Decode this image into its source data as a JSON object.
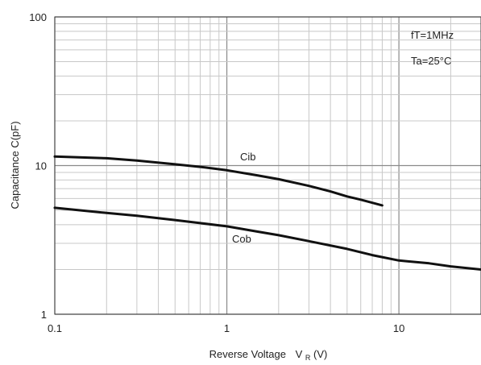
{
  "chart_data": {
    "type": "line",
    "xscale": "log",
    "yscale": "log",
    "xlim": [
      0.1,
      30
    ],
    "ylim": [
      1,
      100
    ],
    "x_ticks": [
      0.1,
      1,
      10
    ],
    "x_tick_labels": [
      "0.1",
      "1",
      "10"
    ],
    "y_ticks": [
      1,
      10,
      100
    ],
    "y_tick_labels": [
      "1",
      "10",
      "100"
    ],
    "xlabel": "Reverse Voltage",
    "xlabel_symbol": "V",
    "xlabel_sub": "R",
    "xlabel_unit": "(V)",
    "ylabel": "Capacitance  C(pF)",
    "grid": true,
    "annotations": [
      "fT=1MHz",
      "Ta=25°C"
    ],
    "series": [
      {
        "name": "Cib",
        "x": [
          0.1,
          0.2,
          0.3,
          0.5,
          0.7,
          1,
          1.5,
          2,
          3,
          4,
          5,
          6,
          8
        ],
        "y": [
          11.5,
          11.2,
          10.8,
          10.2,
          9.8,
          9.3,
          8.6,
          8.1,
          7.3,
          6.7,
          6.2,
          5.9,
          5.4
        ]
      },
      {
        "name": "Cob",
        "x": [
          0.1,
          0.2,
          0.3,
          0.5,
          0.7,
          1,
          1.5,
          2,
          3,
          5,
          7,
          10,
          15,
          20,
          30
        ],
        "y": [
          5.2,
          4.8,
          4.6,
          4.3,
          4.1,
          3.9,
          3.6,
          3.4,
          3.1,
          2.75,
          2.5,
          2.3,
          2.2,
          2.1,
          2.0
        ]
      }
    ]
  }
}
